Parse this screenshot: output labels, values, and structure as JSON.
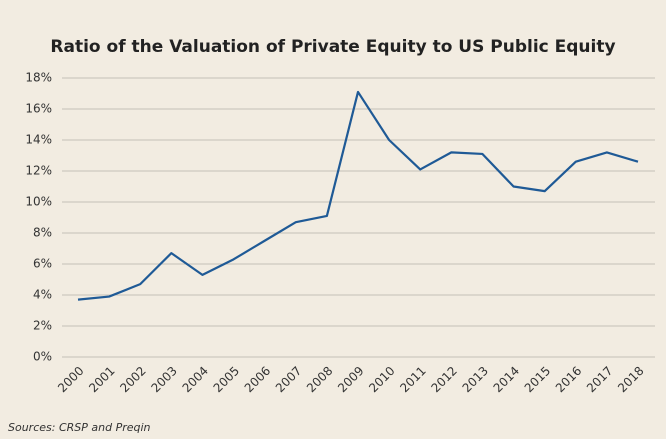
{
  "chart_data": {
    "type": "line",
    "title": "Ratio of the Valuation of Private Equity to US Public Equity",
    "note": "Sources: CRSP and Preqin",
    "categories": [
      "2000",
      "2001",
      "2002",
      "2003",
      "2004",
      "2005",
      "2006",
      "2007",
      "2008",
      "2009",
      "2010",
      "2011",
      "2012",
      "2013",
      "2014",
      "2015",
      "2016",
      "2017",
      "2018"
    ],
    "values": [
      3.7,
      3.9,
      4.7,
      6.7,
      5.3,
      6.3,
      7.5,
      8.7,
      9.1,
      17.1,
      14.0,
      12.1,
      13.2,
      13.1,
      11.0,
      10.7,
      12.6,
      13.2,
      12.6
    ],
    "color": "#1f5a96",
    "ylim": [
      0,
      18
    ],
    "yticks": [
      {
        "value": 0,
        "label": "0%"
      },
      {
        "value": 2,
        "label": "2%"
      },
      {
        "value": 4,
        "label": "4%"
      },
      {
        "value": 6,
        "label": "6%"
      },
      {
        "value": 8,
        "label": "8%"
      },
      {
        "value": 10,
        "label": "10%"
      },
      {
        "value": 12,
        "label": "12%"
      },
      {
        "value": 14,
        "label": "14%"
      },
      {
        "value": 16,
        "label": "16%"
      },
      {
        "value": 18,
        "label": "18%"
      }
    ],
    "grid": true
  }
}
